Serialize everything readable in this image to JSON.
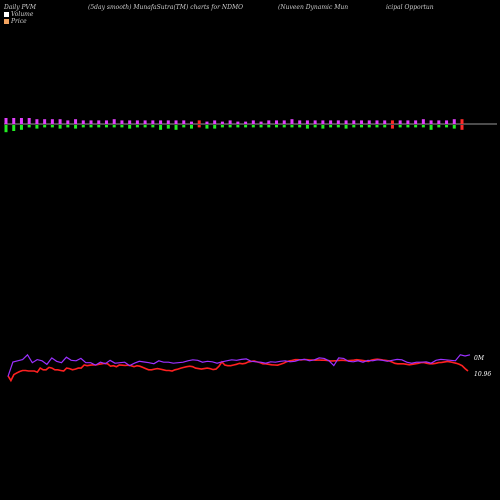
{
  "header": {
    "left": "Daily PVM",
    "middle": "(5day smooth) MunafaSutra(TM) charts for NDMO",
    "right_a": "(Nuveen  Dynamic Mun",
    "right_b": "icipal Opportun"
  },
  "legend": {
    "volume_label": "Volume",
    "price_label": "Price",
    "volume_color": "#ffffff",
    "price_color": "#f4a460"
  },
  "chart_data": {
    "type": "line",
    "price_label_text": "10.96",
    "volume_label_text": "0M",
    "colors": {
      "up_bar": "#e040fb",
      "down_bar": "#22ee22",
      "red_bar": "#ff2a2a",
      "price_line": "#ff2020",
      "volume_line": "#9b30ff",
      "baseline": "#cccccc"
    },
    "pvm_bars": [
      {
        "up": 5,
        "down": 6,
        "c": "m"
      },
      {
        "up": 5,
        "down": 5,
        "c": "m"
      },
      {
        "up": 5,
        "down": 4,
        "c": "m"
      },
      {
        "up": 5,
        "down": 2,
        "c": "m"
      },
      {
        "up": 4,
        "down": 3,
        "c": "m"
      },
      {
        "up": 4,
        "down": 2,
        "c": "m"
      },
      {
        "up": 4,
        "down": 2,
        "c": "m"
      },
      {
        "up": 4,
        "down": 3,
        "c": "m"
      },
      {
        "up": 3,
        "down": 2,
        "c": "m"
      },
      {
        "up": 4,
        "down": 3,
        "c": "m"
      },
      {
        "up": 3,
        "down": 2,
        "c": "m"
      },
      {
        "up": 3,
        "down": 2,
        "c": "m"
      },
      {
        "up": 3,
        "down": 2,
        "c": "m"
      },
      {
        "up": 3,
        "down": 2,
        "c": "m"
      },
      {
        "up": 4,
        "down": 2,
        "c": "m"
      },
      {
        "up": 3,
        "down": 2,
        "c": "m"
      },
      {
        "up": 3,
        "down": 3,
        "c": "m"
      },
      {
        "up": 3,
        "down": 2,
        "c": "m"
      },
      {
        "up": 3,
        "down": 2,
        "c": "m"
      },
      {
        "up": 3,
        "down": 2,
        "c": "m"
      },
      {
        "up": 3,
        "down": 4,
        "c": "m"
      },
      {
        "up": 3,
        "down": 3,
        "c": "m"
      },
      {
        "up": 3,
        "down": 4,
        "c": "m"
      },
      {
        "up": 3,
        "down": 2,
        "c": "m"
      },
      {
        "up": 2,
        "down": 3,
        "c": "m"
      },
      {
        "up": 3,
        "down": 2,
        "c": "r"
      },
      {
        "up": 2,
        "down": 3,
        "c": "m"
      },
      {
        "up": 3,
        "down": 3,
        "c": "m"
      },
      {
        "up": 2,
        "down": 2,
        "c": "m"
      },
      {
        "up": 3,
        "down": 2,
        "c": "m"
      },
      {
        "up": 2,
        "down": 2,
        "c": "m"
      },
      {
        "up": 2,
        "down": 2,
        "c": "m"
      },
      {
        "up": 3,
        "down": 2,
        "c": "m"
      },
      {
        "up": 2,
        "down": 2,
        "c": "m"
      },
      {
        "up": 3,
        "down": 2,
        "c": "m"
      },
      {
        "up": 3,
        "down": 2,
        "c": "m"
      },
      {
        "up": 3,
        "down": 2,
        "c": "m"
      },
      {
        "up": 4,
        "down": 2,
        "c": "m"
      },
      {
        "up": 3,
        "down": 2,
        "c": "m"
      },
      {
        "up": 3,
        "down": 3,
        "c": "m"
      },
      {
        "up": 3,
        "down": 2,
        "c": "m"
      },
      {
        "up": 3,
        "down": 3,
        "c": "m"
      },
      {
        "up": 3,
        "down": 2,
        "c": "m"
      },
      {
        "up": 3,
        "down": 2,
        "c": "m"
      },
      {
        "up": 3,
        "down": 3,
        "c": "m"
      },
      {
        "up": 3,
        "down": 2,
        "c": "m"
      },
      {
        "up": 3,
        "down": 2,
        "c": "m"
      },
      {
        "up": 3,
        "down": 2,
        "c": "m"
      },
      {
        "up": 3,
        "down": 2,
        "c": "m"
      },
      {
        "up": 3,
        "down": 2,
        "c": "m"
      },
      {
        "up": 3,
        "down": 3,
        "c": "r"
      },
      {
        "up": 3,
        "down": 2,
        "c": "m"
      },
      {
        "up": 3,
        "down": 2,
        "c": "m"
      },
      {
        "up": 3,
        "down": 2,
        "c": "m"
      },
      {
        "up": 4,
        "down": 2,
        "c": "m"
      },
      {
        "up": 3,
        "down": 4,
        "c": "m"
      },
      {
        "up": 3,
        "down": 2,
        "c": "m"
      },
      {
        "up": 3,
        "down": 2,
        "c": "m"
      },
      {
        "up": 4,
        "down": 3,
        "c": "m"
      },
      {
        "up": 4,
        "down": 4,
        "c": "r"
      }
    ],
    "price_series": [
      0.3,
      0.1,
      0.35,
      0.42,
      0.48,
      0.52,
      0.52,
      0.5,
      0.5,
      0.5,
      0.45,
      0.62,
      0.55,
      0.55,
      0.65,
      0.62,
      0.55,
      0.55,
      0.52,
      0.5,
      0.62,
      0.6,
      0.55,
      0.58,
      0.62,
      0.62,
      0.75,
      0.72,
      0.74,
      0.76,
      0.75,
      0.78,
      0.8,
      0.82,
      0.8,
      0.7,
      0.72,
      0.68,
      0.75,
      0.74,
      0.73,
      0.74,
      0.72,
      0.68,
      0.72,
      0.7,
      0.65,
      0.6,
      0.55,
      0.55,
      0.58,
      0.6,
      0.58,
      0.55,
      0.52,
      0.52,
      0.5,
      0.55,
      0.58,
      0.62,
      0.65,
      0.68,
      0.7,
      0.68,
      0.62,
      0.6,
      0.58,
      0.6,
      0.62,
      0.6,
      0.56,
      0.58,
      0.7,
      0.88,
      0.75,
      0.72,
      0.72,
      0.75,
      0.78,
      0.82,
      0.8,
      0.82,
      0.88,
      0.9,
      0.92,
      0.88,
      0.85,
      0.8,
      0.8,
      0.78,
      0.76,
      0.75,
      0.74,
      0.78,
      0.82,
      0.88,
      0.92,
      0.94,
      0.97,
      0.97,
      0.96,
      0.98,
      0.97,
      0.96,
      0.96,
      0.95,
      0.96,
      0.95,
      0.95,
      0.94,
      0.92,
      0.92,
      0.93,
      0.94,
      0.95,
      0.94,
      0.93,
      0.94,
      0.95,
      0.97,
      0.96,
      0.94,
      0.92,
      0.9,
      0.95,
      0.98,
      0.99,
      0.98,
      0.96,
      0.94,
      0.92,
      0.88,
      0.82,
      0.8,
      0.8,
      0.8,
      0.78,
      0.76,
      0.78,
      0.8,
      0.82,
      0.85,
      0.85,
      0.82,
      0.8,
      0.8,
      0.82,
      0.85,
      0.86,
      0.88,
      0.9,
      0.88,
      0.85,
      0.82,
      0.78,
      0.72,
      0.6,
      0.5
    ],
    "volume_series": [
      0.15,
      0.75,
      0.8,
      0.85,
      1.05,
      0.72,
      0.85,
      0.8,
      0.65,
      0.92,
      0.78,
      0.72,
      0.95,
      0.82,
      0.8,
      0.9,
      0.72,
      0.72,
      0.62,
      0.74,
      0.68,
      0.82,
      0.7,
      0.72,
      0.74,
      0.6,
      0.7,
      0.78,
      0.75,
      0.72,
      0.68,
      0.8,
      0.74,
      0.74,
      0.7,
      0.72,
      0.74,
      0.8,
      0.84,
      0.82,
      0.74,
      0.78,
      0.76,
      0.7,
      0.76,
      0.8,
      0.84,
      0.82,
      0.86,
      0.88,
      0.78,
      0.76,
      0.74,
      0.7,
      0.76,
      0.74,
      0.78,
      0.8,
      0.76,
      0.78,
      0.84,
      0.86,
      0.8,
      0.84,
      0.92,
      0.9,
      0.8,
      0.6,
      0.92,
      0.9,
      0.78,
      0.76,
      0.8,
      0.74,
      0.82,
      0.8,
      0.84,
      0.82,
      0.78,
      0.82,
      0.86,
      0.84,
      0.74,
      0.7,
      0.74,
      0.74,
      0.76,
      0.7,
      0.82,
      0.86,
      0.84,
      0.82,
      0.8,
      1.05,
      1.0,
      1.05
    ]
  }
}
